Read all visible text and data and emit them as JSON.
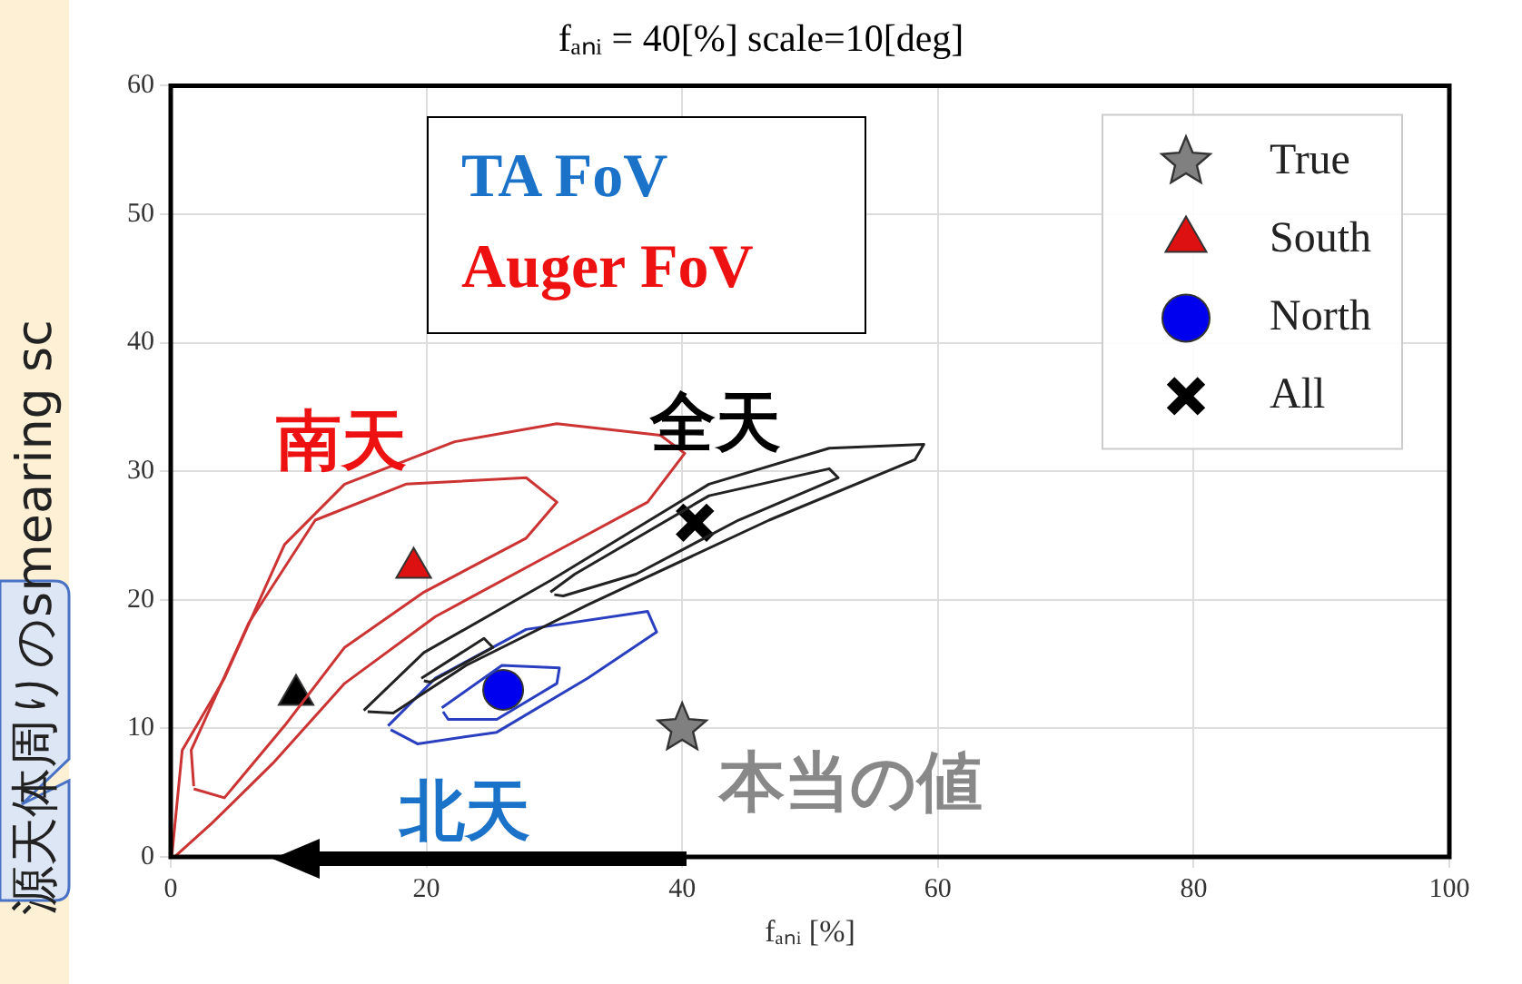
{
  "chart_data": {
    "type": "scatter",
    "title": "fₐₙᵢ = 40[%] scale=10[deg]",
    "xlabel": "fₐₙᵢ [%]",
    "xlim": [
      0,
      100
    ],
    "xticks": [
      0,
      20,
      40,
      60,
      80,
      100
    ],
    "ylim": [
      0,
      60
    ],
    "yticks": [
      0,
      10,
      20,
      30,
      40,
      50,
      60
    ],
    "grid": true,
    "legend": "top right",
    "series": [
      {
        "type": "line",
        "color": "#cc3333",
        "marker": "none",
        "x": [
          0.1,
          0.9,
          4.2,
          8.9,
          13.6,
          22.2,
          30.2,
          38.3,
          40.2,
          37.3,
          30.2,
          20.7,
          13.6,
          8,
          3.2,
          0.4
        ],
        "values": [
          0.2,
          8.3,
          13.9,
          24.3,
          29,
          32.3,
          33.7,
          32.8,
          31.4,
          27.6,
          23.8,
          18.7,
          13.5,
          7.3,
          2.6,
          0.1
        ]
      },
      {
        "type": "line",
        "color": "#cc3333",
        "marker": "none",
        "x": [
          1.8,
          1.6,
          6.1,
          11.3,
          18.4,
          27.8,
          30.2,
          27.8,
          19.8,
          13.6,
          8.9,
          4.2,
          1.8
        ],
        "values": [
          5.5,
          8.3,
          18.2,
          26.2,
          29,
          29.5,
          27.6,
          24.8,
          20.6,
          16.3,
          10.2,
          4.6,
          5.3
        ]
      },
      {
        "type": "line",
        "color": "#222222",
        "marker": "none",
        "x": [
          15.1,
          19.8,
          29.7,
          42.1,
          51.5,
          58.9,
          58.2,
          46.8,
          32.6,
          23.1,
          17.4,
          15.4
        ],
        "values": [
          11.4,
          15.9,
          21.5,
          29,
          31.8,
          32.1,
          30.9,
          26.2,
          19.6,
          14.9,
          11.2,
          11.3
        ]
      },
      {
        "type": "line",
        "color": "#222222",
        "marker": "none",
        "x": [
          29.7,
          31.6,
          42.1,
          51.5,
          52.2,
          44.4,
          36.4,
          30.7,
          30
        ],
        "values": [
          20.6,
          22,
          28.1,
          30.2,
          29.5,
          26.2,
          22,
          20.3,
          20.4
        ]
      },
      {
        "type": "line",
        "color": "#222222",
        "marker": "none",
        "x": [
          19.6,
          24.5,
          25.2,
          20.3,
          19.8
        ],
        "values": [
          13.9,
          17,
          16.3,
          13.6,
          13.7
        ]
      },
      {
        "type": "line",
        "color": "#2a3fc0",
        "marker": "none",
        "x": [
          17,
          20.7,
          27.8,
          37.3,
          38,
          32.6,
          25.5,
          19.3,
          17.2
        ],
        "values": [
          10.2,
          13.9,
          17.7,
          19.1,
          17.5,
          13.9,
          9.7,
          8.8,
          9.9
        ]
      },
      {
        "type": "line",
        "color": "#2a3fc0",
        "marker": "none",
        "x": [
          21.2,
          25.9,
          30.4,
          30.2,
          25.5,
          21.7,
          21.3
        ],
        "values": [
          11.6,
          14.9,
          14.7,
          13.5,
          10.7,
          10.7,
          11.3
        ]
      },
      {
        "type": "scatter",
        "color": "#000000",
        "marker": "triangle",
        "x": [
          9.8
        ],
        "values": [
          12.6
        ]
      },
      {
        "type": "scatter",
        "name": "True",
        "color": "#808080",
        "marker": "star",
        "x": [
          40
        ],
        "values": [
          10
        ]
      },
      {
        "type": "scatter",
        "name": "South",
        "color": "#dd1111",
        "marker": "triangle",
        "x": [
          19
        ],
        "values": [
          22.5
        ]
      },
      {
        "type": "scatter",
        "name": "North",
        "color": "#0000ee",
        "marker": "circle",
        "x": [
          26
        ],
        "values": [
          13
        ]
      },
      {
        "type": "scatter",
        "name": "All",
        "color": "#000000",
        "marker": "cross",
        "x": [
          41
        ],
        "values": [
          26
        ]
      }
    ],
    "annotations": [
      "TA FoV",
      "Auger FoV",
      "南天",
      "全天",
      "北天",
      "本当の値",
      "源天体周りのsmearing sc"
    ]
  }
}
